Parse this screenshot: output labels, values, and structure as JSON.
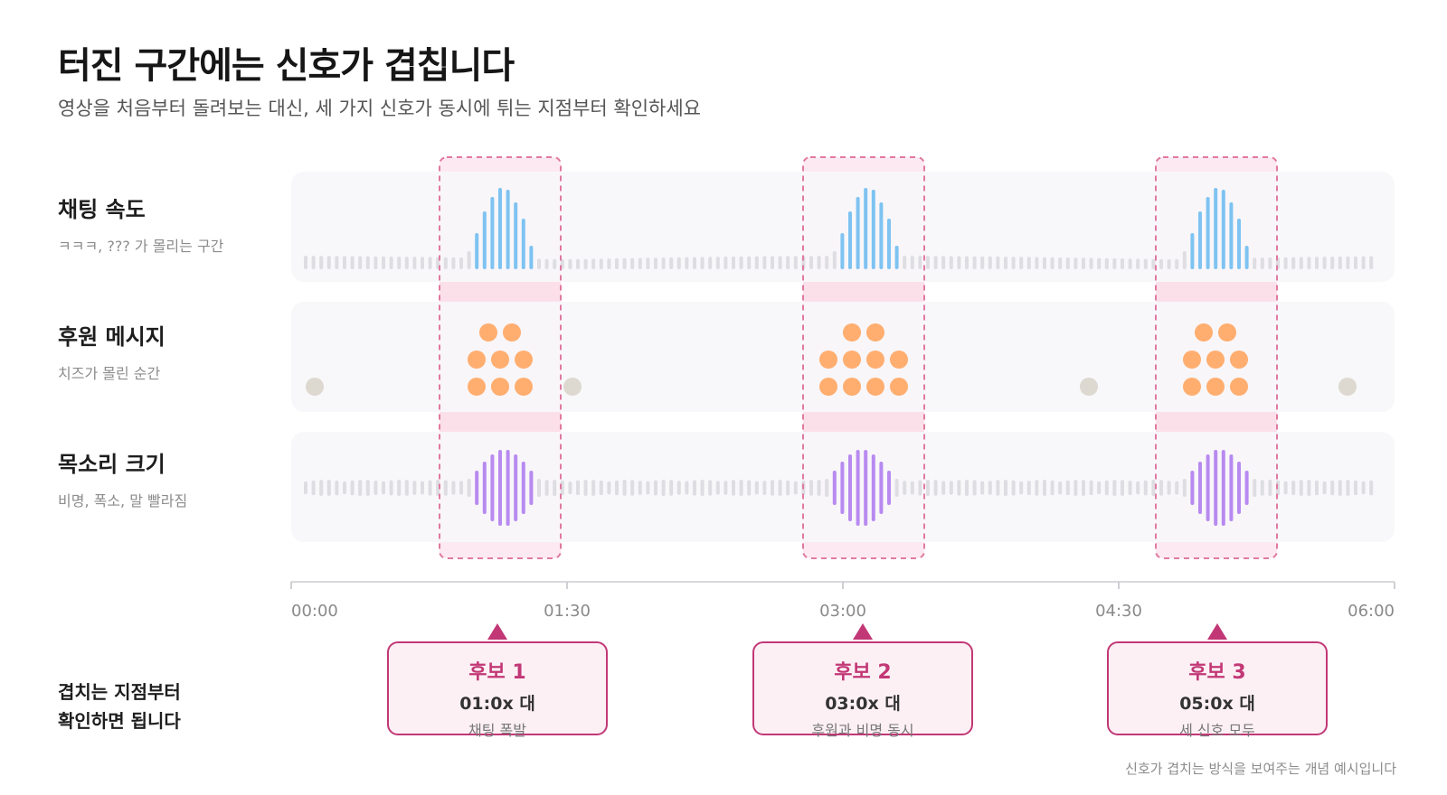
{
  "title": "터진 구간에는 신호가 겹칩니다",
  "subtitle": "영상을 처음부터 돌려보는 대신, 세 가지 신호가 동시에 튀는 지점부터 확인하세요",
  "rows": [
    {
      "name": "채팅 속도",
      "desc": "ㅋㅋㅋ, ??? 가 몰리는 구간",
      "color": "#7ec3f1"
    },
    {
      "name": "후원 메시지",
      "desc": "치즈가 몰린 순간",
      "color": "#ffae70"
    },
    {
      "name": "목소리 크기",
      "desc": "비명, 폭소, 말 빨라짐",
      "color": "#b88af0"
    }
  ],
  "colors": {
    "idle_bar": "#dddde2",
    "idle_dot": "#ddd9d0",
    "highlight_border": "#e07aa0",
    "highlight_fill": "#fde9f1",
    "track_bg": "#f7f7f9",
    "accent": "#c23876"
  },
  "axis": {
    "ticks": [
      "00:00",
      "01:30",
      "03:00",
      "04:30",
      "06:00"
    ]
  },
  "bottom_label": [
    "겹치는 지점부터",
    "확인하면 됩니다"
  ],
  "candidates": [
    {
      "title": "후보 1",
      "time": "01:0x 대",
      "note": "채팅 폭발"
    },
    {
      "title": "후보 2",
      "time": "03:0x 대",
      "note": "후원과 비명 동시"
    },
    {
      "title": "후보 3",
      "time": "05:0x 대",
      "note": "세 신호 모두"
    }
  ],
  "footnote": "신호가 겹치는 방식을 보여주는 개념 예시입니다"
}
